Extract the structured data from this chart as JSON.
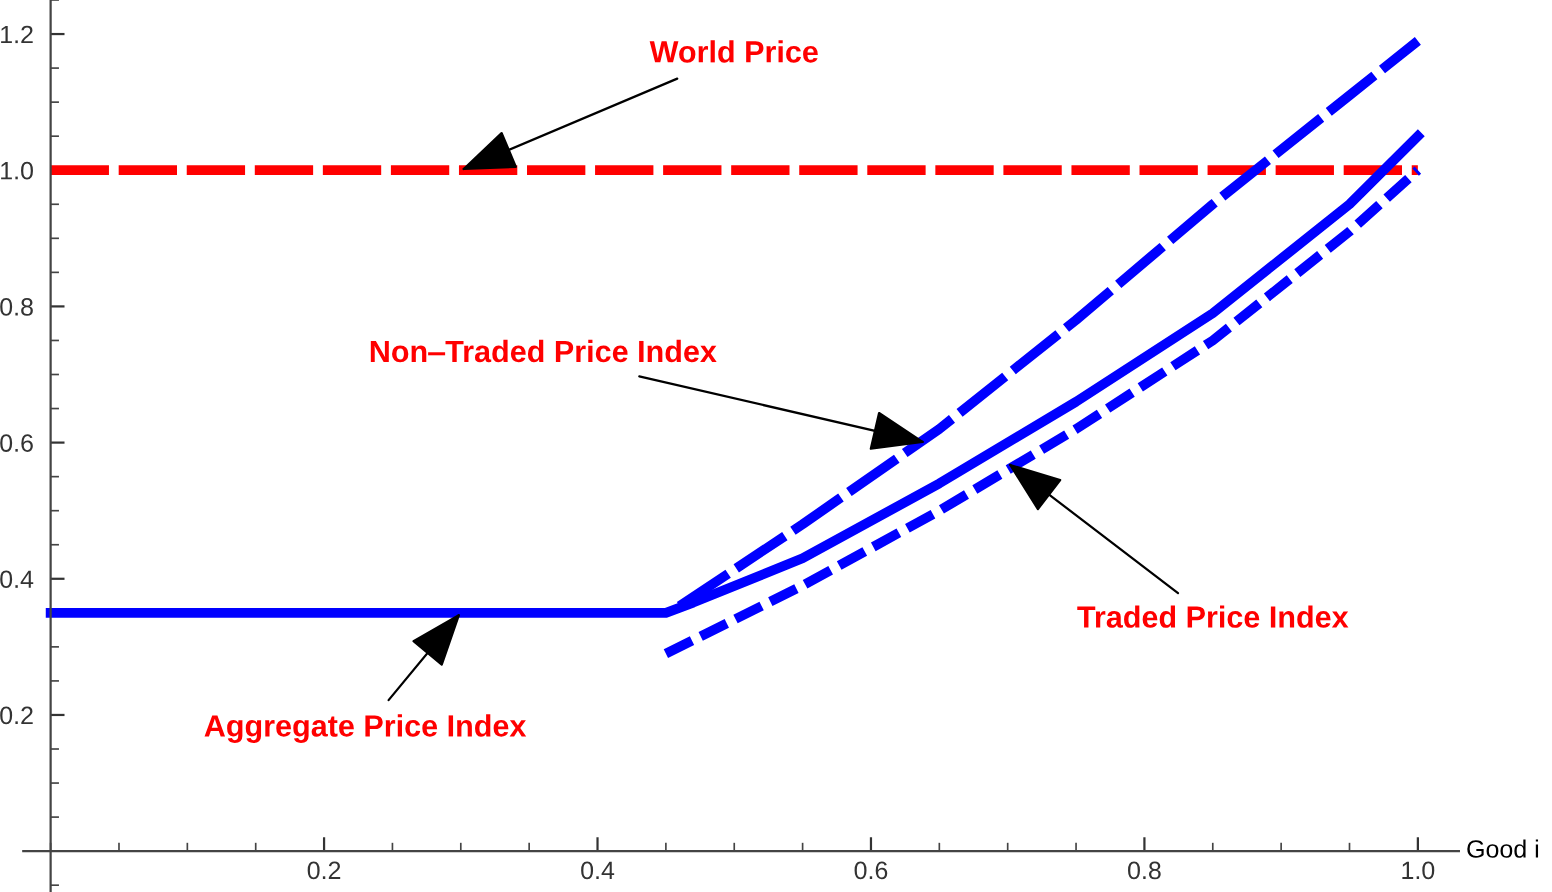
{
  "chart_data": {
    "type": "line",
    "xlabel": "Good i",
    "xlim": [
      -0.02,
      1.03
    ],
    "ylim": [
      -0.06,
      1.25
    ],
    "xticks": [
      0.2,
      0.4,
      0.6,
      0.8,
      {
        "value": 1,
        "label": "1.0"
      }
    ],
    "yticks": [
      0.2,
      0.4,
      0.6,
      0.8,
      {
        "value": 1,
        "label": "1.0"
      },
      1.2
    ],
    "grid": false,
    "legend": false,
    "marker": "none",
    "series": [
      {
        "color": "#ff0000",
        "line_style": "dashed",
        "x": [
          0,
          1.0
        ],
        "values": [
          1.0,
          1.0
        ]
      },
      {
        "color": "#0000ff",
        "line_style": "dashed",
        "x": [
          0.46,
          0.55,
          0.65,
          0.75,
          0.85,
          0.95,
          1.0
        ],
        "values": [
          0.36,
          0.48,
          0.62,
          0.78,
          0.95,
          1.11,
          1.19
        ]
      },
      {
        "color": "#0000ff",
        "line_style": "solid",
        "x": [
          0,
          0.45,
          0.47,
          0.55,
          0.65,
          0.75,
          0.85,
          0.95,
          1.0
        ],
        "values": [
          0.35,
          0.35,
          0.365,
          0.43,
          0.54,
          0.66,
          0.79,
          0.95,
          1.05
        ]
      },
      {
        "color": "#0000ff",
        "line_style": "dotted",
        "x": [
          0.45,
          0.55,
          0.65,
          0.75,
          0.85,
          0.95,
          1.0
        ],
        "values": [
          0.29,
          0.39,
          0.5,
          0.62,
          0.75,
          0.91,
          1.0
        ]
      }
    ],
    "annotations": [
      {
        "text": "World Price",
        "x": 0.3,
        "y": 1.0
      },
      {
        "text": "Non‒Traded Price Index",
        "x": 0.64,
        "y": 0.6
      },
      {
        "text": "Traded Price Index",
        "x": 0.7,
        "y": 0.57
      },
      {
        "text": "Aggregate Price Index",
        "x": 0.3,
        "y": 0.35
      }
    ]
  }
}
